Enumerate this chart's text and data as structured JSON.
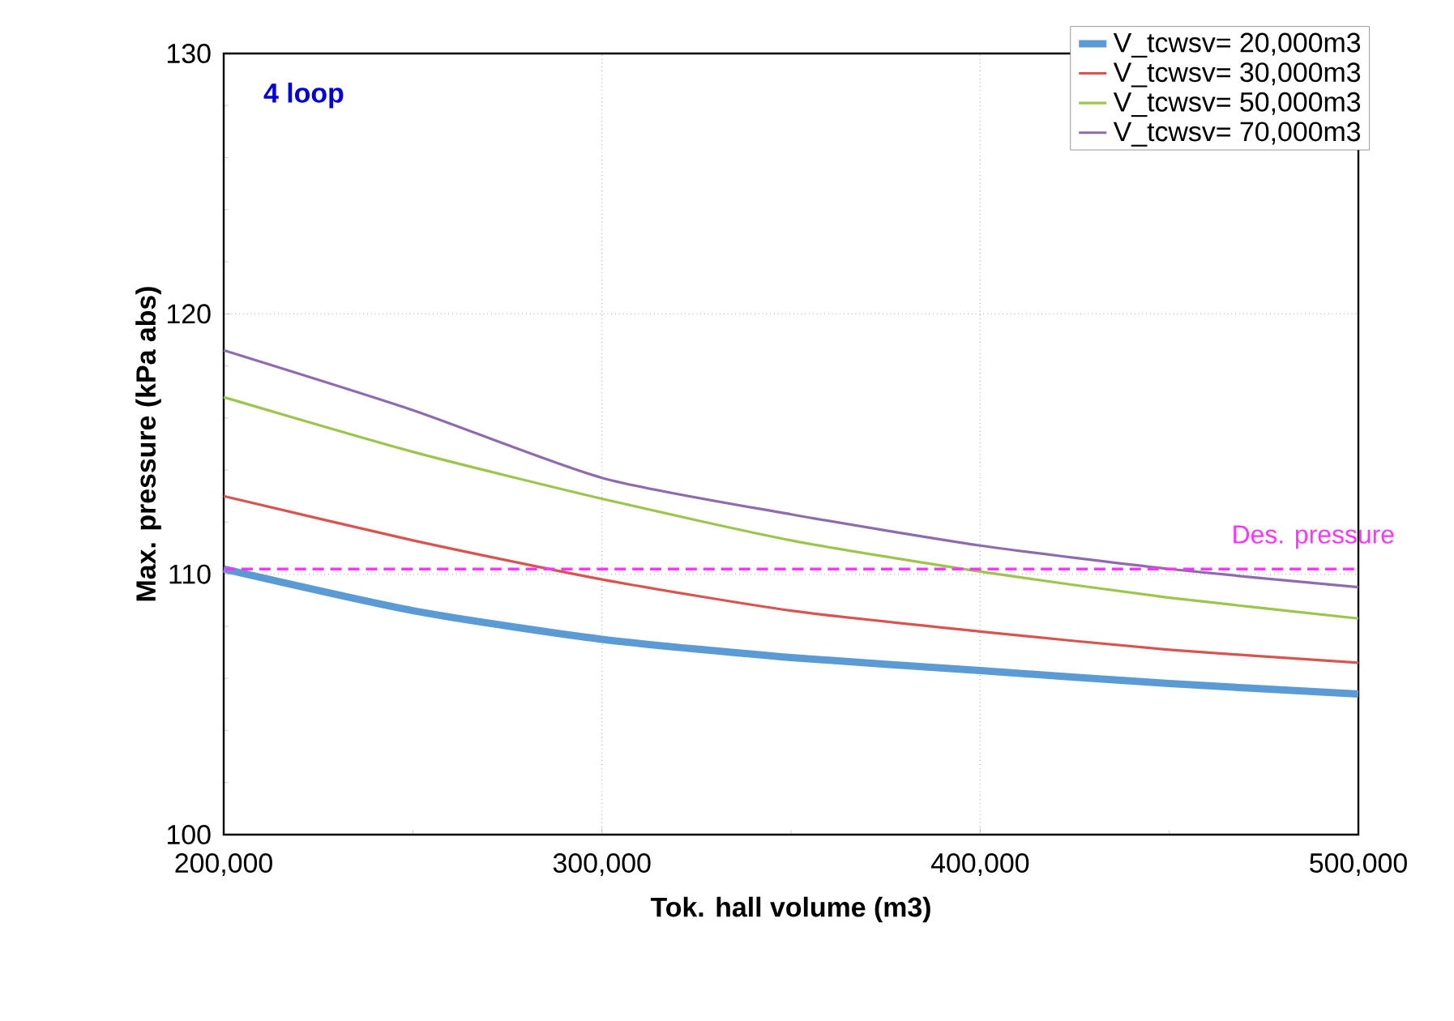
{
  "chart_data": {
    "type": "line",
    "xlabel": "Tok. hall volume (m3)",
    "ylabel": "Max. pressure (kPa abs)",
    "x": [
      200000,
      250000,
      300000,
      350000,
      400000,
      450000,
      500000
    ],
    "series": [
      {
        "name": "V_tcwsv= 20,000m3",
        "color": "#5b9bd5",
        "values": [
          110.2,
          108.6,
          107.5,
          106.8,
          106.3,
          105.8,
          105.4
        ]
      },
      {
        "name": "V_tcwsv= 30,000m3",
        "color": "#d9534f",
        "values": [
          113.0,
          111.3,
          109.8,
          108.6,
          107.8,
          107.1,
          106.6
        ]
      },
      {
        "name": "V_tcwsv= 50,000m3",
        "color": "#9bc64b",
        "values": [
          116.8,
          114.7,
          112.9,
          111.3,
          110.1,
          109.1,
          108.3
        ]
      },
      {
        "name": "V_tcwsv= 70,000m3",
        "color": "#8e6bb0",
        "values": [
          118.6,
          116.3,
          113.7,
          112.3,
          111.1,
          110.2,
          109.5
        ]
      }
    ],
    "xlim": [
      200000,
      500000
    ],
    "ylim": [
      100,
      130
    ],
    "xticks": [
      {
        "value": 200000,
        "label": "200,000"
      },
      {
        "value": 300000,
        "label": "300,000"
      },
      {
        "value": 400000,
        "label": "400,000"
      },
      {
        "value": 500000,
        "label": "500,000"
      }
    ],
    "yticks": [
      100,
      110,
      120,
      130
    ],
    "ref_lines": [
      {
        "axis": "y",
        "value": 110.2,
        "label": "Des. pressure",
        "color": "#ff33ff",
        "line_style": "dashed"
      }
    ],
    "annotations": [
      "4 loop"
    ],
    "grid": true,
    "legend": "top right",
    "marker": "none",
    "line_style": "solid"
  }
}
